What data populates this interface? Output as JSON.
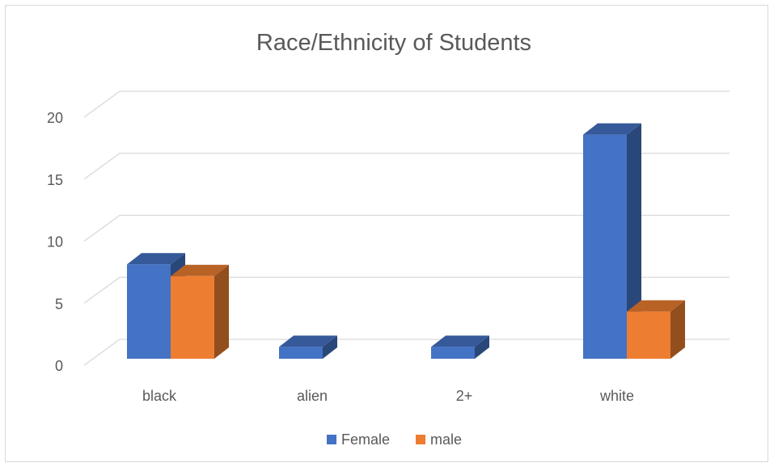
{
  "chart_data": {
    "type": "bar",
    "title": "Race/Ethnicity of Students",
    "categories": [
      "black",
      "alien",
      "2+",
      "white"
    ],
    "series": [
      {
        "name": "Female",
        "values": [
          8,
          1,
          1,
          19
        ],
        "color": "#4472C4"
      },
      {
        "name": "male",
        "values": [
          7,
          0,
          0,
          4
        ],
        "color": "#ED7D31"
      }
    ],
    "ylim": [
      0,
      20
    ],
    "yticks": [
      0,
      5,
      10,
      15,
      20
    ],
    "grid": true,
    "legend_position": "bottom",
    "style": "3d-clustered-column"
  }
}
